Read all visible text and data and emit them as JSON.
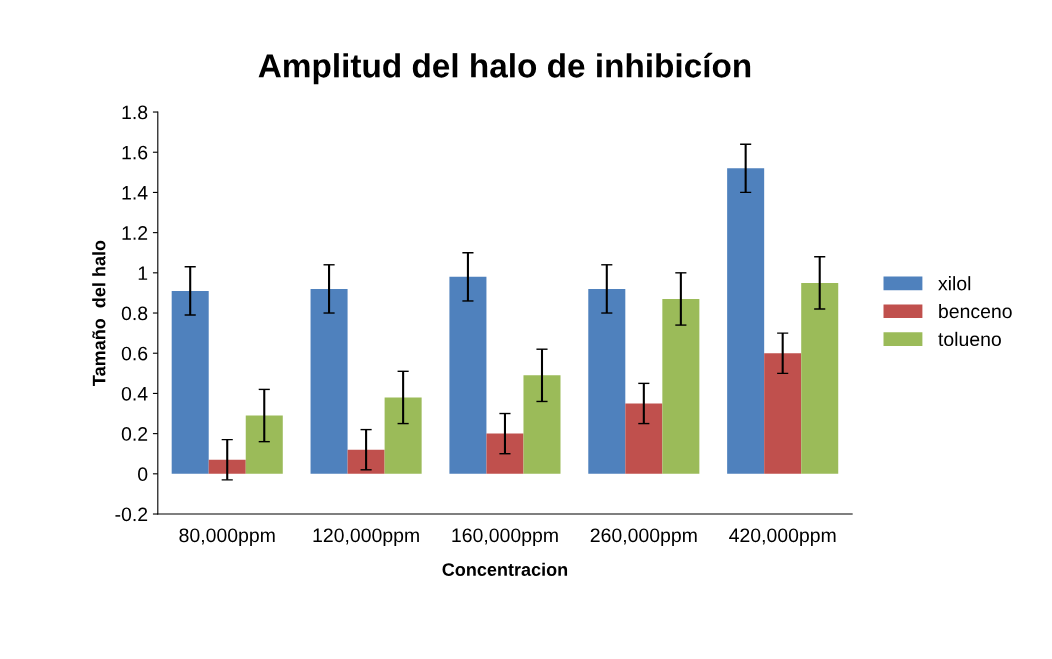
{
  "chart_data": {
    "type": "bar",
    "title": "Amplitud del halo de inhibicíon",
    "xlabel": "Concentracion",
    "ylabel": "Tamaño  del halo",
    "categories": [
      "80,000ppm",
      "120,000ppm",
      "160,000ppm",
      "260,000ppm",
      "420,000ppm"
    ],
    "series": [
      {
        "name": "xilol",
        "color": "#4f81bd",
        "values": [
          0.91,
          0.92,
          0.98,
          0.92,
          1.52
        ],
        "errors": [
          0.12,
          0.12,
          0.12,
          0.12,
          0.12
        ]
      },
      {
        "name": "benceno",
        "color": "#c0504d",
        "values": [
          0.07,
          0.12,
          0.2,
          0.35,
          0.6
        ],
        "errors": [
          0.1,
          0.1,
          0.1,
          0.1,
          0.1
        ]
      },
      {
        "name": "tolueno",
        "color": "#9bbb59",
        "values": [
          0.29,
          0.38,
          0.49,
          0.87,
          0.95
        ],
        "errors": [
          0.13,
          0.13,
          0.13,
          0.13,
          0.13
        ]
      }
    ],
    "ylim": [
      -0.2,
      1.8
    ],
    "yticks": [
      -0.2,
      0,
      0.2,
      0.4,
      0.6,
      0.8,
      1,
      1.2,
      1.4,
      1.6,
      1.8
    ],
    "grid": false,
    "legend": "right"
  }
}
